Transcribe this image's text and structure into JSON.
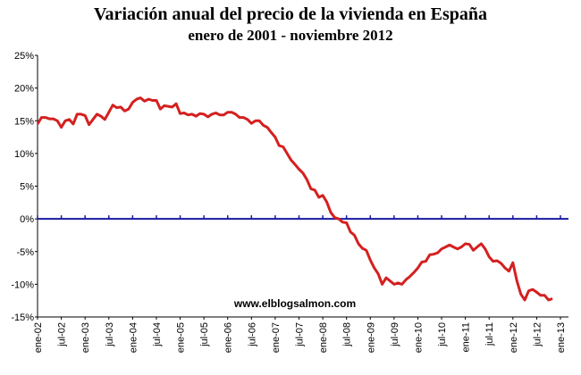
{
  "chart_data": {
    "type": "line",
    "title": "Variación anual del precio de la vivienda en España",
    "subtitle": "enero de 2001 - noviembre 2012",
    "annotation": "www.elblogsalmon.com",
    "categories": [
      "ene-02",
      null,
      null,
      null,
      null,
      null,
      "jul-02",
      null,
      null,
      null,
      null,
      null,
      "ene-03",
      null,
      null,
      null,
      null,
      null,
      "jul-03",
      null,
      null,
      null,
      null,
      null,
      "ene-04",
      null,
      null,
      null,
      null,
      null,
      "jul-04",
      null,
      null,
      null,
      null,
      null,
      "ene-05",
      null,
      null,
      null,
      null,
      null,
      "jul-05",
      null,
      null,
      null,
      null,
      null,
      "ene-06",
      null,
      null,
      null,
      null,
      null,
      "jul-06",
      null,
      null,
      null,
      null,
      null,
      "ene-07",
      null,
      null,
      null,
      null,
      null,
      "jul-07",
      null,
      null,
      null,
      null,
      null,
      "ene-08",
      null,
      null,
      null,
      null,
      null,
      "jul-08",
      null,
      null,
      null,
      null,
      null,
      "ene-09",
      null,
      null,
      null,
      null,
      null,
      "jul-09",
      null,
      null,
      null,
      null,
      null,
      "ene-10",
      null,
      null,
      null,
      null,
      null,
      "jul-10",
      null,
      null,
      null,
      null,
      null,
      "ene-11",
      null,
      null,
      null,
      null,
      null,
      "jul-11",
      null,
      null,
      null,
      null,
      null,
      "ene-12",
      null,
      null,
      null,
      null,
      null,
      "jul-12",
      null,
      null,
      null,
      null,
      null,
      "ene-13"
    ],
    "series": [
      {
        "name": "Variación anual",
        "color": "#d42020",
        "values": [
          14.5,
          15.5,
          15.5,
          15.3,
          15.3,
          15.0,
          14.0,
          15.0,
          15.2,
          14.5,
          16.0,
          16.0,
          15.8,
          14.4,
          15.2,
          16.0,
          15.7,
          15.2,
          16.3,
          17.4,
          17.0,
          17.1,
          16.5,
          16.8,
          17.8,
          18.3,
          18.5,
          18.0,
          18.3,
          18.1,
          18.1,
          16.8,
          17.3,
          17.2,
          17.1,
          17.6,
          16.1,
          16.2,
          15.9,
          16.0,
          15.7,
          16.1,
          16.0,
          15.6,
          16.0,
          16.2,
          15.9,
          15.9,
          16.3,
          16.3,
          16.0,
          15.5,
          15.5,
          15.2,
          14.6,
          15.0,
          15.0,
          14.3,
          14.0,
          13.2,
          12.5,
          11.2,
          11.0,
          10.0,
          9.0,
          8.3,
          7.6,
          7.0,
          6.0,
          4.6,
          4.4,
          3.3,
          3.6,
          2.6,
          1.0,
          0.2,
          0.0,
          -0.5,
          -0.6,
          -2.0,
          -2.5,
          -3.8,
          -4.5,
          -4.8,
          -6.3,
          -7.5,
          -8.4,
          -10.0,
          -9.0,
          -9.5,
          -10.0,
          -9.8,
          -10.0,
          -9.3,
          -8.8,
          -8.2,
          -7.5,
          -6.6,
          -6.5,
          -5.5,
          -5.4,
          -5.2,
          -4.6,
          -4.3,
          -4.0,
          -4.3,
          -4.6,
          -4.3,
          -3.8,
          -3.9,
          -4.8,
          -4.3,
          -3.8,
          -4.6,
          -5.8,
          -6.5,
          -6.4,
          -6.8,
          -7.5,
          -8.0,
          -6.7,
          -9.5,
          -11.5,
          -12.4,
          -11.0,
          -10.8,
          -11.2,
          -11.7,
          -11.7,
          -12.4,
          -12.2,
          null,
          null
        ]
      }
    ],
    "zero_line_color": "#1a1aa0",
    "ylim": [
      -15,
      25
    ],
    "yticks": [
      {
        "value": -15,
        "label": "-15%"
      },
      {
        "value": -10,
        "label": "-10%"
      },
      {
        "value": -5,
        "label": "-5%"
      },
      {
        "value": 0,
        "label": "0%"
      },
      {
        "value": 5,
        "label": "5%"
      },
      {
        "value": 10,
        "label": "10%"
      },
      {
        "value": 15,
        "label": "15%"
      },
      {
        "value": 20,
        "label": "20%"
      },
      {
        "value": 25,
        "label": "25%"
      }
    ],
    "grid": false
  }
}
